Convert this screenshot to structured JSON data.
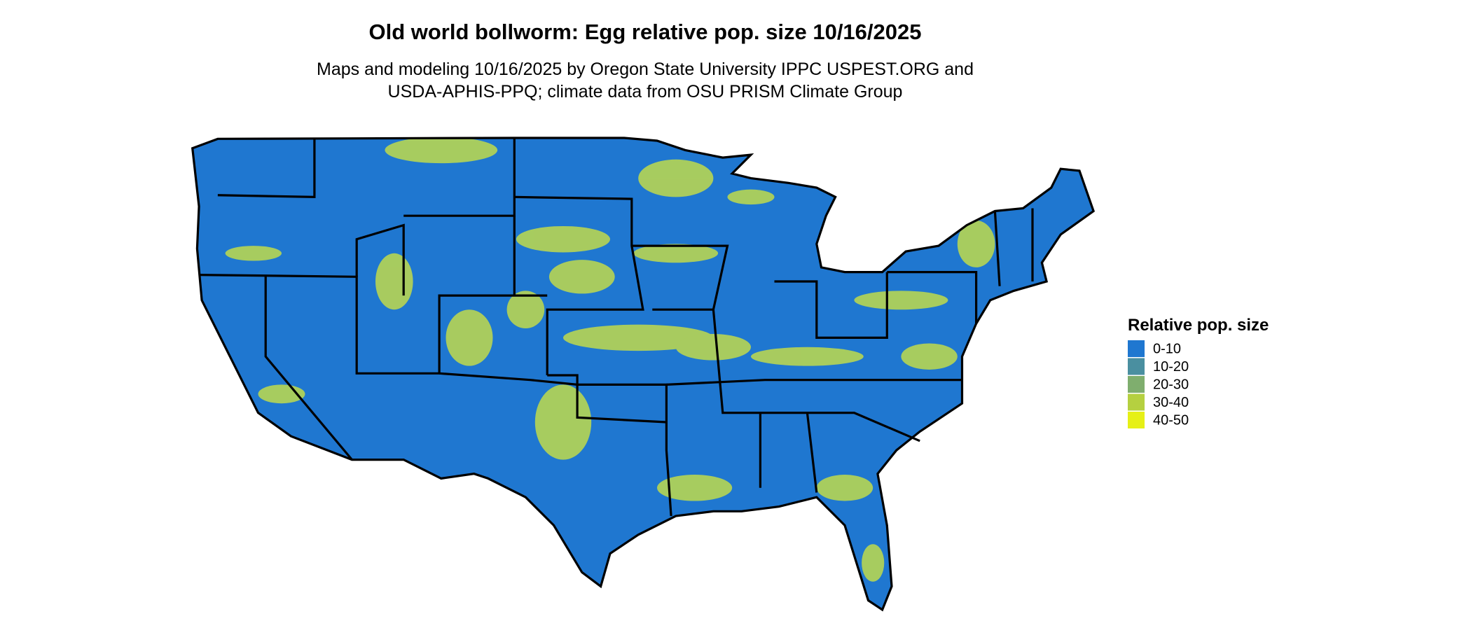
{
  "header": {
    "title": "Old world bollworm: Egg relative pop. size 10/16/2025",
    "subtitle": [
      "Maps and modeling 10/16/2025 by Oregon State University IPPC USPEST.ORG and",
      "USDA-APHIS-PPQ; climate data from OSU PRISM Climate Group"
    ]
  },
  "legend": {
    "title": "Relative pop. size",
    "items": [
      {
        "label": "0-10",
        "color": "#1f77d0"
      },
      {
        "label": "10-20",
        "color": "#4a8fa0"
      },
      {
        "label": "20-30",
        "color": "#7fae6e"
      },
      {
        "label": "30-40",
        "color": "#b5d040"
      },
      {
        "label": "40-50",
        "color": "#e6f016"
      }
    ]
  }
}
